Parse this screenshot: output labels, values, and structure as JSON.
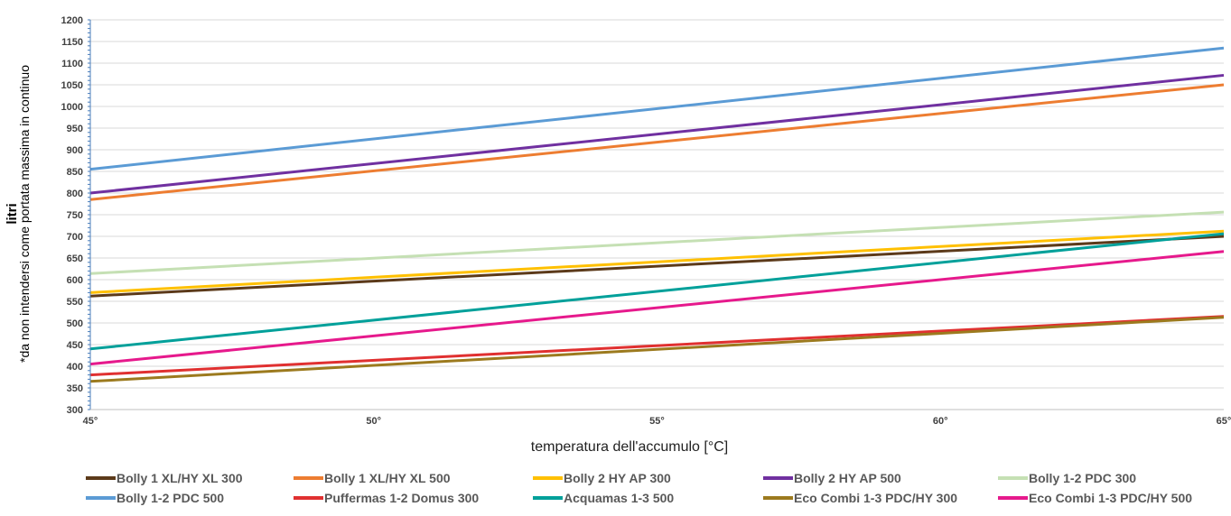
{
  "chart_data": {
    "type": "line",
    "title": "",
    "xlabel": "temperatura dell'accumulo [°C]",
    "ylabel": "litri",
    "ylabel_note": "*da non intendersi come portata massima in continuo",
    "x": [
      45,
      65
    ],
    "x_ticks": [
      45,
      50,
      55,
      60,
      65
    ],
    "x_tick_labels": [
      "45°",
      "50°",
      "55°",
      "60°",
      "65°"
    ],
    "ylim": [
      300,
      1200
    ],
    "y_ticks": [
      300,
      350,
      400,
      450,
      500,
      550,
      600,
      650,
      700,
      750,
      800,
      850,
      900,
      950,
      1000,
      1050,
      1100,
      1150,
      1200
    ],
    "grid": true,
    "legend_position": "bottom",
    "series": [
      {
        "name": "Bolly 1 XL/HY XL 300",
        "color": "#5C3A1A",
        "values": [
          562,
          700
        ]
      },
      {
        "name": "Bolly 1 XL/HY XL 500",
        "color": "#ED7D31",
        "values": [
          785,
          1050
        ]
      },
      {
        "name": "Bolly 2 HY AP 300",
        "color": "#FFC000",
        "values": [
          570,
          712
        ]
      },
      {
        "name": "Bolly 2 HY AP 500",
        "color": "#7030A0",
        "values": [
          800,
          1072
        ]
      },
      {
        "name": "Bolly 1-2 PDC 300",
        "color": "#C5E0B4",
        "values": [
          614,
          756
        ]
      },
      {
        "name": "Bolly 1-2 PDC 500",
        "color": "#5B9BD5",
        "values": [
          855,
          1135
        ]
      },
      {
        "name": "Puffermas 1-2 Domus 300",
        "color": "#E03030",
        "values": [
          380,
          515
        ]
      },
      {
        "name": "Acquamas 1-3  500",
        "color": "#00A09A",
        "values": [
          440,
          706
        ]
      },
      {
        "name": "Eco Combi 1-3 PDC/HY 300",
        "color": "#9C7A1E",
        "values": [
          365,
          513
        ]
      },
      {
        "name": "Eco Combi 1-3 PDC/HY 500",
        "color": "#E6198C",
        "values": [
          405,
          665
        ]
      }
    ]
  }
}
